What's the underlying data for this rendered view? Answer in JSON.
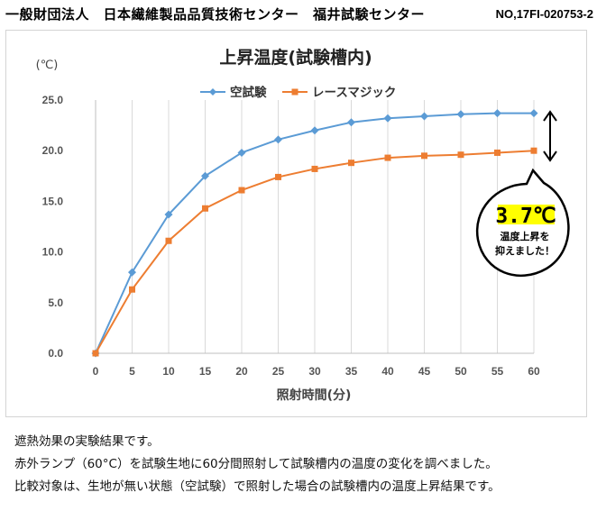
{
  "header": {
    "organization": "一般財団法人　日本繊維製品品質技術センター　福井試験センター",
    "doc_no": "NO,17FI-020753-2"
  },
  "chart_data": {
    "type": "line",
    "title": "上昇温度(試験槽内)",
    "xlabel": "照射時間(分)",
    "ylabel": "(℃)",
    "x": [
      0,
      5,
      10,
      15,
      20,
      25,
      30,
      35,
      40,
      45,
      50,
      55,
      60
    ],
    "x_tick_labels": [
      "0",
      "5",
      "10",
      "15",
      "20",
      "25",
      "30",
      "35",
      "40",
      "45",
      "50",
      "55",
      "60"
    ],
    "xlim": [
      0,
      60
    ],
    "ylim": [
      0,
      25
    ],
    "y_ticks": [
      0,
      5,
      10,
      15,
      20,
      25
    ],
    "y_tick_labels": [
      "0.0",
      "5.0",
      "10.0",
      "15.0",
      "20.0",
      "25.0"
    ],
    "legend_position": "top-center",
    "grid": "vertical",
    "series": [
      {
        "name": "空試験",
        "color": "#5b9bd5",
        "marker": "diamond",
        "values": [
          0.0,
          8.0,
          13.7,
          17.5,
          19.8,
          21.1,
          22.0,
          22.8,
          23.2,
          23.4,
          23.6,
          23.7,
          23.7
        ]
      },
      {
        "name": "レースマジック",
        "color": "#ed7d31",
        "marker": "square",
        "values": [
          0.0,
          6.3,
          11.1,
          14.3,
          16.1,
          17.4,
          18.2,
          18.8,
          19.3,
          19.5,
          19.6,
          19.8,
          20.0
        ]
      }
    ],
    "annotation": {
      "value_text": "3.7℃",
      "highlight_color": "#ffff00",
      "caption_line1": "温度上昇を",
      "caption_line2": "抑えました！"
    }
  },
  "notes": {
    "line1": "遮熱効果の実験結果です。",
    "line2": "赤外ランプ（60°C）を試験生地に60分間照射して試験槽内の温度の変化を調べました。",
    "line3": "比較対象は、生地が無い状態（空試験）で照射した場合の試験槽内の温度上昇結果です。"
  }
}
